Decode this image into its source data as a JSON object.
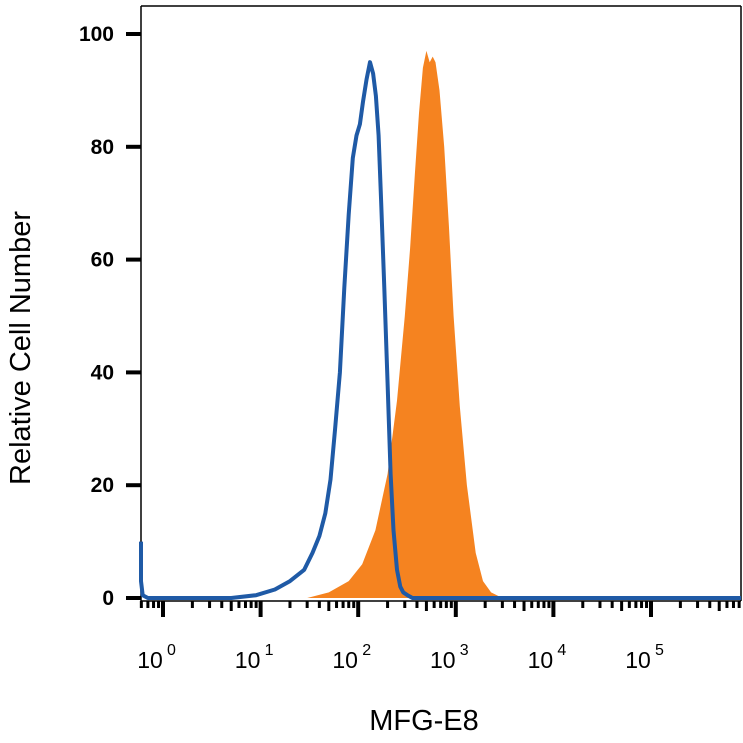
{
  "chart_data": {
    "type": "area",
    "xlabel": "MFG-E8",
    "ylabel": "Relative Cell Number",
    "x_scale": "log",
    "xlim": [
      0.5,
      1000000
    ],
    "ylim": [
      0,
      100
    ],
    "y_ticks": [
      "0",
      "20",
      "40",
      "60",
      "80",
      "100"
    ],
    "x_ticks": [
      {
        "base": "10",
        "exp": "0",
        "value": 1
      },
      {
        "base": "10",
        "exp": "1",
        "value": 10
      },
      {
        "base": "10",
        "exp": "2",
        "value": 100
      },
      {
        "base": "10",
        "exp": "3",
        "value": 1000
      },
      {
        "base": "10",
        "exp": "4",
        "value": 10000
      },
      {
        "base": "10",
        "exp": "5",
        "value": 100000
      }
    ],
    "series": [
      {
        "style": "filled",
        "color": "#f58320",
        "x": [
          0.5,
          30,
          50,
          80,
          110,
          150,
          200,
          250,
          300,
          340,
          380,
          420,
          460,
          500,
          540,
          580,
          620,
          680,
          760,
          850,
          950,
          1100,
          1300,
          1600,
          1900,
          2300,
          3000,
          1000000
        ],
        "y": [
          0,
          0,
          1,
          3,
          6,
          12,
          22,
          35,
          50,
          62,
          75,
          86,
          94,
          97,
          95,
          96,
          95,
          90,
          80,
          66,
          50,
          34,
          20,
          8,
          3,
          1,
          0,
          0
        ]
      },
      {
        "style": "line",
        "color": "#1f5aa6",
        "x": [
          0.5,
          0.53,
          0.56,
          0.62,
          0.7,
          0.8,
          5,
          9,
          14,
          20,
          28,
          34,
          40,
          46,
          52,
          58,
          65,
          72,
          80,
          88,
          96,
          104,
          112,
          122,
          132,
          142,
          152,
          162,
          172,
          185,
          200,
          215,
          230,
          250,
          270,
          290,
          320,
          360,
          1000000
        ],
        "y": [
          10,
          8,
          3,
          0.5,
          0,
          0,
          0,
          0.5,
          1.5,
          3,
          5,
          8,
          11,
          15,
          21,
          30,
          40,
          55,
          68,
          78,
          82,
          84,
          88,
          92,
          95,
          93,
          89,
          82,
          70,
          55,
          38,
          22,
          12,
          5,
          2,
          1,
          0.5,
          0,
          0
        ]
      }
    ]
  }
}
